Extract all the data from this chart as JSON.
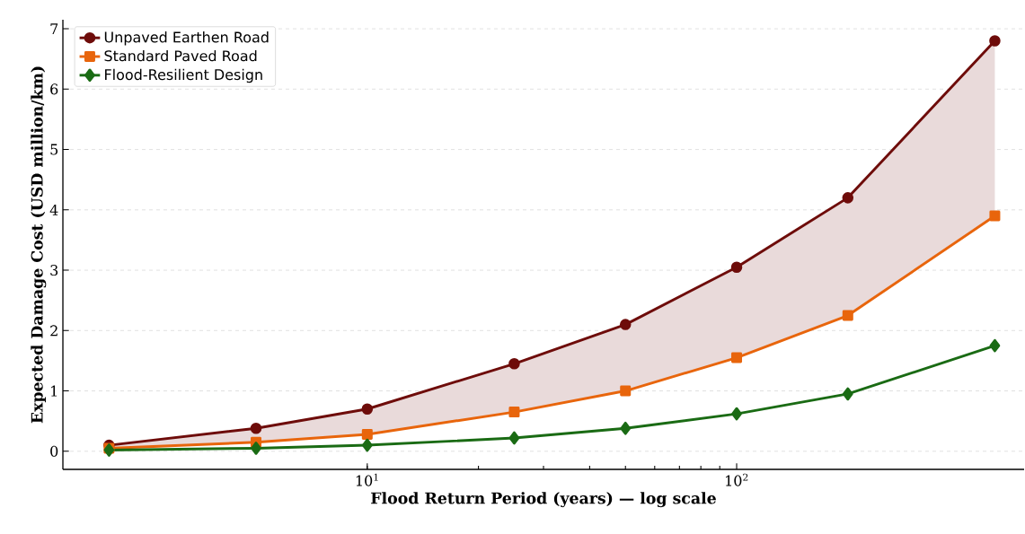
{
  "chart_data": {
    "type": "line",
    "xlabel": "Flood Return Period (years) — log scale",
    "ylabel": "Expected Damage Cost (USD million/km)",
    "x": [
      2,
      5,
      10,
      25,
      50,
      100,
      200,
      500
    ],
    "series": [
      {
        "name": "Unpaved Earthen Road",
        "color": "#6e0c0a",
        "marker": "circle",
        "values": [
          0.1,
          0.38,
          0.7,
          1.45,
          2.1,
          3.05,
          4.2,
          6.8
        ],
        "lower": [
          0.05,
          0.15,
          0.28,
          0.65,
          1.0,
          1.55,
          2.25,
          3.9
        ],
        "upper": [
          0.1,
          0.38,
          0.7,
          1.45,
          2.1,
          3.05,
          4.2,
          6.8
        ]
      },
      {
        "name": "Standard Paved Road",
        "color": "#e8650c",
        "marker": "square",
        "values": [
          0.05,
          0.15,
          0.28,
          0.65,
          1.0,
          1.55,
          2.25,
          3.9
        ]
      },
      {
        "name": "Flood-Resilient Design",
        "color": "#1a6b14",
        "marker": "diamond",
        "values": [
          0.02,
          0.05,
          0.1,
          0.22,
          0.38,
          0.62,
          0.95,
          1.75
        ]
      }
    ],
    "log": "x",
    "xlim": [
      1.5,
      600
    ],
    "xticks": [
      {
        "value": 10,
        "label": "10$^{1}$"
      },
      {
        "value": 100,
        "label": "10$^{2}$"
      }
    ],
    "ylim": [
      -0.3,
      7.15
    ],
    "yticks": [
      0,
      1,
      2,
      3,
      4,
      5,
      6,
      7
    ],
    "grid": "y",
    "legend": "top left",
    "line_style": "solid"
  }
}
